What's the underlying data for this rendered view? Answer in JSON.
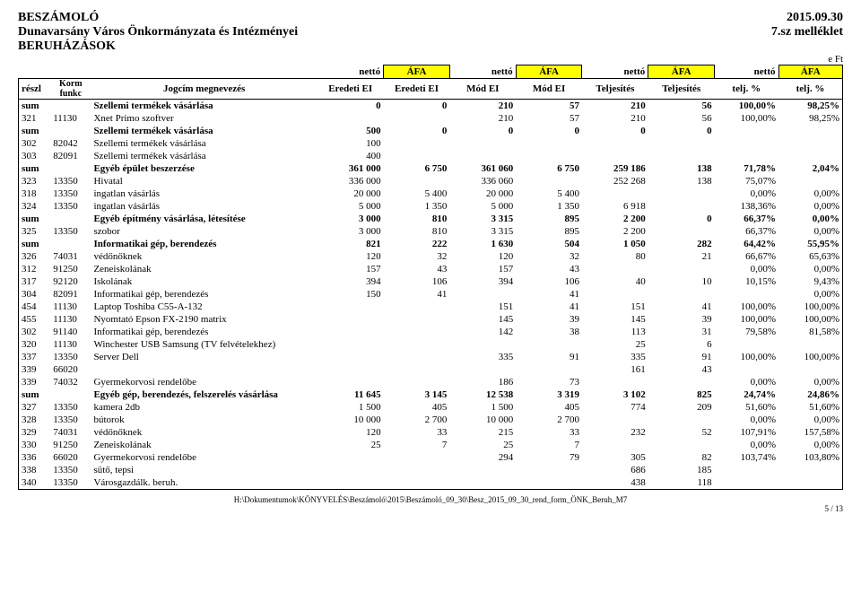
{
  "header": {
    "title1": "BESZÁMOLÓ",
    "title2": "Dunavarsány Város Önkormányzata és Intézményei",
    "title3": "BERUHÁZÁSOK",
    "date": "2015.09.30",
    "attachment": "7.sz melléklet",
    "unit": "e Ft"
  },
  "colhdr": {
    "netto": "nettó",
    "afa": "ÁFA",
    "reszl": "részl",
    "korm": "Korm funkc",
    "jogcim": "Jogcím megnevezés",
    "eredeti": "Eredeti EI",
    "mod": "Mód EI",
    "telj": "Teljesítés",
    "teljpct": "telj. %"
  },
  "rows": [
    {
      "r": "sum",
      "k": "",
      "n": "Szellemi termékek vásárlása",
      "v": [
        "0",
        "0",
        "210",
        "57",
        "210",
        "56",
        "100,00%",
        "98,25%"
      ],
      "b": true
    },
    {
      "r": "321",
      "k": "11130",
      "n": "Xnet Primo szoftver",
      "v": [
        "",
        "",
        "210",
        "57",
        "210",
        "56",
        "100,00%",
        "98,25%"
      ]
    },
    {
      "r": "sum",
      "k": "",
      "n": "Szellemi termékek vásárlása",
      "v": [
        "500",
        "0",
        "0",
        "0",
        "0",
        "0",
        "",
        ""
      ],
      "b": true
    },
    {
      "r": "302",
      "k": "82042",
      "n": "Szellemi termékek vásárlása",
      "v": [
        "100",
        "",
        "",
        "",
        "",
        "",
        "",
        ""
      ]
    },
    {
      "r": "303",
      "k": "82091",
      "n": "Szellemi termékek vásárlása",
      "v": [
        "400",
        "",
        "",
        "",
        "",
        "",
        "",
        ""
      ]
    },
    {
      "r": "sum",
      "k": "",
      "n": "Egyéb épület beszerzése",
      "v": [
        "361 000",
        "6 750",
        "361 060",
        "6 750",
        "259 186",
        "138",
        "71,78%",
        "2,04%"
      ],
      "b": true
    },
    {
      "r": "323",
      "k": "13350",
      "n": "Hivatal",
      "v": [
        "336 000",
        "",
        "336 060",
        "",
        "252 268",
        "138",
        "75,07%",
        ""
      ]
    },
    {
      "r": "318",
      "k": "13350",
      "n": "ingatlan vásárlás",
      "v": [
        "20 000",
        "5 400",
        "20 000",
        "5 400",
        "",
        "",
        "0,00%",
        "0,00%"
      ]
    },
    {
      "r": "324",
      "k": "13350",
      "n": "ingatlan vásárlás",
      "v": [
        "5 000",
        "1 350",
        "5 000",
        "1 350",
        "6 918",
        "",
        "138,36%",
        "0,00%"
      ]
    },
    {
      "r": "sum",
      "k": "",
      "n": "Egyéb építmény vásárlása, létesítése",
      "v": [
        "3 000",
        "810",
        "3 315",
        "895",
        "2 200",
        "0",
        "66,37%",
        "0,00%"
      ],
      "b": true
    },
    {
      "r": "325",
      "k": "13350",
      "n": "szobor",
      "v": [
        "3 000",
        "810",
        "3 315",
        "895",
        "2 200",
        "",
        "66,37%",
        "0,00%"
      ]
    },
    {
      "r": "sum",
      "k": "",
      "n": "Informatikai gép, berendezés",
      "v": [
        "821",
        "222",
        "1 630",
        "504",
        "1 050",
        "282",
        "64,42%",
        "55,95%"
      ],
      "b": true
    },
    {
      "r": "326",
      "k": "74031",
      "n": "védőnőknek",
      "v": [
        "120",
        "32",
        "120",
        "32",
        "80",
        "21",
        "66,67%",
        "65,63%"
      ]
    },
    {
      "r": "312",
      "k": "91250",
      "n": "Zeneiskolának",
      "v": [
        "157",
        "43",
        "157",
        "43",
        "",
        "",
        "0,00%",
        "0,00%"
      ]
    },
    {
      "r": "317",
      "k": "92120",
      "n": "Iskolának",
      "v": [
        "394",
        "106",
        "394",
        "106",
        "40",
        "10",
        "10,15%",
        "9,43%"
      ]
    },
    {
      "r": "304",
      "k": "82091",
      "n": "Informatikai gép, berendezés",
      "v": [
        "150",
        "41",
        "",
        "41",
        "",
        "",
        "",
        "0,00%"
      ]
    },
    {
      "r": "454",
      "k": "11130",
      "n": "Laptop Toshiba C55-A-132",
      "v": [
        "",
        "",
        "151",
        "41",
        "151",
        "41",
        "100,00%",
        "100,00%"
      ]
    },
    {
      "r": "455",
      "k": "11130",
      "n": "Nyomtató Epson FX-2190 matrix",
      "v": [
        "",
        "",
        "145",
        "39",
        "145",
        "39",
        "100,00%",
        "100,00%"
      ]
    },
    {
      "r": "302",
      "k": "91140",
      "n": "Informatikai gép, berendezés",
      "v": [
        "",
        "",
        "142",
        "38",
        "113",
        "31",
        "79,58%",
        "81,58%"
      ]
    },
    {
      "r": "320",
      "k": "11130",
      "n": "Winchester USB Samsung (TV felvételekhez)",
      "v": [
        "",
        "",
        "",
        "",
        "25",
        "6",
        "",
        ""
      ]
    },
    {
      "r": "337",
      "k": "13350",
      "n": "Server Dell",
      "v": [
        "",
        "",
        "335",
        "91",
        "335",
        "91",
        "100,00%",
        "100,00%"
      ]
    },
    {
      "r": "339",
      "k": "66020",
      "n": "",
      "v": [
        "",
        "",
        "",
        "",
        "161",
        "43",
        "",
        ""
      ]
    },
    {
      "r": "339",
      "k": "74032",
      "n": "Gyermekorvosi rendelőbe",
      "v": [
        "",
        "",
        "186",
        "73",
        "",
        "",
        "0,00%",
        "0,00%"
      ]
    },
    {
      "r": "sum",
      "k": "",
      "n": "Egyéb gép, berendezés, felszerelés vásárlása",
      "v": [
        "11 645",
        "3 145",
        "12 538",
        "3 319",
        "3 102",
        "825",
        "24,74%",
        "24,86%"
      ],
      "b": true
    },
    {
      "r": "327",
      "k": "13350",
      "n": "kamera 2db",
      "v": [
        "1 500",
        "405",
        "1 500",
        "405",
        "774",
        "209",
        "51,60%",
        "51,60%"
      ]
    },
    {
      "r": "328",
      "k": "13350",
      "n": "bútorok",
      "v": [
        "10 000",
        "2 700",
        "10 000",
        "2 700",
        "",
        "",
        "0,00%",
        "0,00%"
      ]
    },
    {
      "r": "329",
      "k": "74031",
      "n": "védőnőknek",
      "v": [
        "120",
        "33",
        "215",
        "33",
        "232",
        "52",
        "107,91%",
        "157,58%"
      ]
    },
    {
      "r": "330",
      "k": "91250",
      "n": "Zeneiskolának",
      "v": [
        "25",
        "7",
        "25",
        "7",
        "",
        "",
        "0,00%",
        "0,00%"
      ]
    },
    {
      "r": "336",
      "k": "66020",
      "n": "Gyermekorvosi rendelőbe",
      "v": [
        "",
        "",
        "294",
        "79",
        "305",
        "82",
        "103,74%",
        "103,80%"
      ]
    },
    {
      "r": "338",
      "k": "13350",
      "n": "sütő, tepsi",
      "v": [
        "",
        "",
        "",
        "",
        "686",
        "185",
        "",
        ""
      ]
    },
    {
      "r": "340",
      "k": "13350",
      "n": "Városgazdálk. beruh.",
      "v": [
        "",
        "",
        "",
        "",
        "438",
        "118",
        "",
        ""
      ]
    }
  ],
  "footer": {
    "path": "H:\\Dokumentumok\\KÖNYVELÉS\\Beszámoló\\2015\\Beszámoló_09_30\\Besz_2015_09_30_rend_form_ÖNK_Beruh_M7",
    "page": "5 / 13"
  }
}
